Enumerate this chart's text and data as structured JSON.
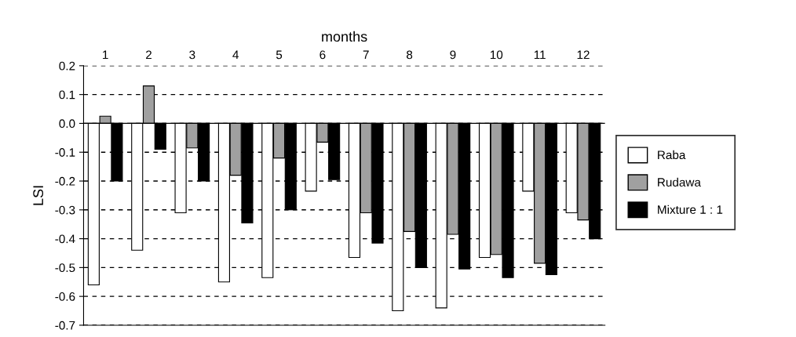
{
  "chart_data": {
    "type": "bar",
    "xlabel": "months",
    "ylabel": "LSI",
    "categories": [
      "1",
      "2",
      "3",
      "4",
      "5",
      "6",
      "7",
      "8",
      "9",
      "10",
      "11",
      "12"
    ],
    "series": [
      {
        "name": "Raba",
        "color": "#ffffff",
        "values": [
          -0.56,
          -0.44,
          -0.31,
          -0.55,
          -0.535,
          -0.235,
          -0.465,
          -0.65,
          -0.64,
          -0.465,
          -0.235,
          -0.31
        ]
      },
      {
        "name": "Rudawa",
        "color": "#a0a0a0",
        "values": [
          0.025,
          0.13,
          -0.085,
          -0.18,
          -0.12,
          -0.065,
          -0.31,
          -0.375,
          -0.385,
          -0.455,
          -0.485,
          -0.335
        ]
      },
      {
        "name": "Mixture 1 : 1",
        "color": "#000000",
        "values": [
          -0.2,
          -0.09,
          -0.2,
          -0.345,
          -0.3,
          -0.195,
          -0.415,
          -0.5,
          -0.505,
          -0.535,
          -0.525,
          -0.4
        ]
      }
    ],
    "ylim": [
      -0.7,
      0.2
    ],
    "yticks": [
      {
        "value": 0.2,
        "label": "0.2"
      },
      {
        "value": 0.1,
        "label": "0.1"
      },
      {
        "value": 0,
        "label": "0.0"
      },
      {
        "value": -0.1,
        "label": "-0.1"
      },
      {
        "value": -0.2,
        "label": "-0.2"
      },
      {
        "value": -0.3,
        "label": "-0.3"
      },
      {
        "value": -0.4,
        "label": "-0.4"
      },
      {
        "value": -0.5,
        "label": "-0.5"
      },
      {
        "value": -0.6,
        "label": "-0.6"
      },
      {
        "value": -0.7,
        "label": "-0.7"
      }
    ],
    "ref_lines": [
      {
        "axis": "y",
        "value": 0,
        "color": "#000000",
        "line_style": "solid"
      }
    ],
    "grid": "y",
    "legend": "right"
  }
}
